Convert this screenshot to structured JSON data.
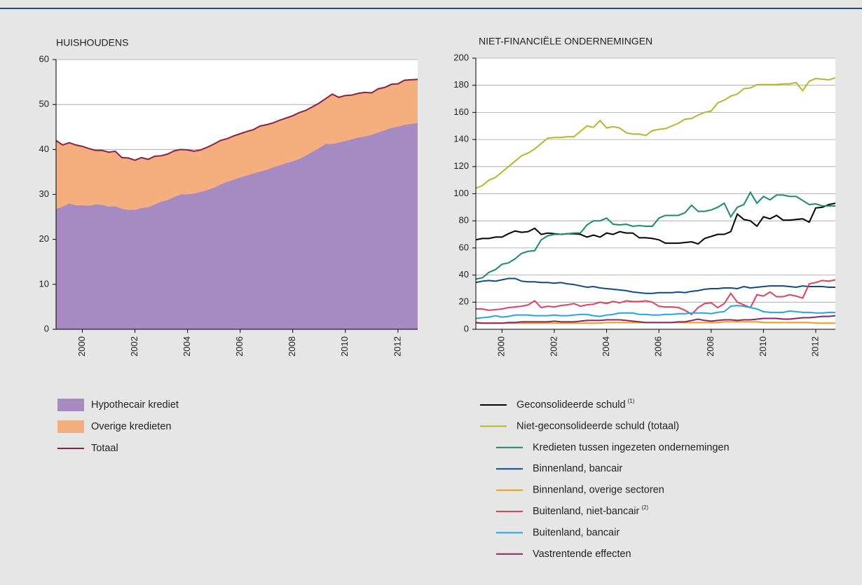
{
  "chart_data": [
    {
      "type": "area",
      "title": "HUISHOUDENS",
      "x": [
        1999,
        1999.25,
        1999.5,
        1999.75,
        2000,
        2000.25,
        2000.5,
        2000.75,
        2001,
        2001.25,
        2001.5,
        2001.75,
        2002,
        2002.25,
        2002.5,
        2002.75,
        2003,
        2003.25,
        2003.5,
        2003.75,
        2004,
        2004.25,
        2004.5,
        2004.75,
        2005,
        2005.25,
        2005.5,
        2005.75,
        2006,
        2006.25,
        2006.5,
        2006.75,
        2007,
        2007.25,
        2007.5,
        2007.75,
        2008,
        2008.25,
        2008.5,
        2008.75,
        2009,
        2009.25,
        2009.5,
        2009.75,
        2010,
        2010.25,
        2010.5,
        2010.75,
        2011,
        2011.25,
        2011.5,
        2011.75,
        2012,
        2012.25,
        2012.5,
        2012.75
      ],
      "xlim": [
        1999,
        2012.75
      ],
      "xticks": [
        2000,
        2002,
        2004,
        2006,
        2008,
        2010,
        2012
      ],
      "ylim": [
        0,
        60
      ],
      "yticks": [
        0,
        10,
        20,
        30,
        40,
        50,
        60
      ],
      "grid": true,
      "series": [
        {
          "name": "Hypothecair krediet",
          "color": "#a68bc2",
          "values": [
            26.8,
            27.3,
            28.0,
            27.6,
            27.6,
            27.5,
            27.8,
            27.7,
            27.3,
            27.4,
            26.8,
            26.6,
            26.6,
            27.0,
            27.2,
            27.8,
            28.4,
            28.8,
            29.5,
            30.0,
            30.0,
            30.2,
            30.6,
            31.0,
            31.5,
            32.2,
            32.8,
            33.3,
            33.8,
            34.2,
            34.7,
            35.1,
            35.5,
            36.0,
            36.5,
            37.0,
            37.4,
            37.9,
            38.7,
            39.5,
            40.3,
            41.3,
            41.2,
            41.6,
            41.9,
            42.3,
            42.7,
            42.9,
            43.3,
            43.8,
            44.3,
            44.8,
            45.1,
            45.5,
            45.7,
            45.9
          ]
        },
        {
          "name": "Overige kredieten",
          "color": "#f5ae7e",
          "values": [
            15.2,
            13.7,
            13.5,
            13.4,
            13.1,
            12.7,
            12.0,
            12.1,
            12.1,
            12.2,
            11.4,
            11.5,
            11.0,
            11.2,
            10.6,
            10.7,
            10.2,
            10.2,
            10.2,
            10.0,
            9.9,
            9.4,
            9.3,
            9.5,
            9.7,
            9.8,
            9.6,
            9.7,
            9.7,
            9.8,
            9.7,
            10.1,
            10.0,
            9.9,
            10.0,
            10.0,
            10.1,
            10.3,
            10.0,
            10.0,
            10.0,
            10.0,
            11.1,
            10.0,
            10.1,
            9.8,
            9.8,
            9.8,
            9.3,
            9.7,
            9.5,
            9.7,
            9.5,
            9.9,
            9.8,
            9.7
          ]
        },
        {
          "name": "Totaal",
          "color": "#8b1f4a",
          "mark": "line",
          "values": [
            42.0,
            41.0,
            41.5,
            41.0,
            40.7,
            40.2,
            39.8,
            39.8,
            39.4,
            39.6,
            38.2,
            38.1,
            37.6,
            38.2,
            37.8,
            38.5,
            38.6,
            39.0,
            39.7,
            40.0,
            39.9,
            39.6,
            39.9,
            40.5,
            41.2,
            42.0,
            42.4,
            43.0,
            43.5,
            44.0,
            44.4,
            45.2,
            45.5,
            45.9,
            46.5,
            47.0,
            47.5,
            48.2,
            48.7,
            49.5,
            50.3,
            51.3,
            52.3,
            51.6,
            52.0,
            52.1,
            52.5,
            52.7,
            52.6,
            53.5,
            53.8,
            54.5,
            54.6,
            55.4,
            55.5,
            55.6
          ]
        }
      ]
    },
    {
      "type": "line",
      "title": "NIET-FINANCIËLE ONDERNEMINGEN",
      "x": [
        1999,
        1999.25,
        1999.5,
        1999.75,
        2000,
        2000.25,
        2000.5,
        2000.75,
        2001,
        2001.25,
        2001.5,
        2001.75,
        2002,
        2002.25,
        2002.5,
        2002.75,
        2003,
        2003.25,
        2003.5,
        2003.75,
        2004,
        2004.25,
        2004.5,
        2004.75,
        2005,
        2005.25,
        2005.5,
        2005.75,
        2006,
        2006.25,
        2006.5,
        2006.75,
        2007,
        2007.25,
        2007.5,
        2007.75,
        2008,
        2008.25,
        2008.5,
        2008.75,
        2009,
        2009.25,
        2009.5,
        2009.75,
        2010,
        2010.25,
        2010.5,
        2010.75,
        2011,
        2011.25,
        2011.5,
        2011.75,
        2012,
        2012.25,
        2012.5,
        2012.75
      ],
      "xlim": [
        1999,
        2012.75
      ],
      "xticks": [
        2000,
        2002,
        2004,
        2006,
        2008,
        2010,
        2012
      ],
      "ylim": [
        0,
        200
      ],
      "yticks": [
        0,
        20,
        40,
        60,
        80,
        100,
        120,
        140,
        160,
        180,
        200
      ],
      "grid": true,
      "series": [
        {
          "name": "Geconsolideerde schuld",
          "superscript": "(1)",
          "color": "#000000",
          "values": [
            66,
            67,
            67,
            68,
            68,
            70.5,
            72.5,
            71.5,
            72,
            74.5,
            70,
            71,
            70.5,
            70,
            70.5,
            70.5,
            70,
            68,
            69.5,
            68,
            71,
            70,
            72,
            71,
            71,
            67.5,
            67.5,
            67,
            66,
            63.5,
            63.5,
            63.5,
            64,
            64.5,
            63,
            67,
            68.5,
            70,
            70,
            72,
            85,
            81,
            80,
            76,
            83,
            81.5,
            84,
            80.5,
            80.5,
            81,
            81.5,
            79,
            89.5,
            90,
            92,
            93
          ]
        },
        {
          "name": "Niet-geconsolideerde schuld (totaal)",
          "color": "#b8b52a",
          "values": [
            104,
            106,
            110,
            112,
            116,
            120,
            124,
            128,
            130,
            133,
            137,
            141,
            141.5,
            141.5,
            142,
            142,
            146,
            150,
            149,
            154,
            148.5,
            149.5,
            148.5,
            145,
            144,
            144,
            143,
            146.5,
            147.5,
            148,
            150,
            152,
            155,
            155.5,
            158,
            160,
            161,
            167,
            169,
            172,
            173.5,
            177.5,
            178,
            180.5,
            180.5,
            180.5,
            180.5,
            181,
            181,
            182,
            176,
            183,
            185,
            184.5,
            184,
            185.5
          ]
        },
        {
          "name": "Kredieten tussen ingezeten ondernemingen",
          "color": "#1b8a6b",
          "values": [
            37,
            38,
            42,
            44,
            48,
            49,
            52,
            56,
            57.5,
            58,
            66,
            69,
            70,
            70,
            70.5,
            71,
            71,
            77,
            80,
            80,
            82,
            77.5,
            77,
            77.5,
            76,
            76.5,
            76,
            76,
            82,
            84,
            84,
            84,
            86,
            91.5,
            87,
            87,
            88,
            90,
            93,
            83,
            90,
            92,
            101,
            93,
            98,
            95.5,
            99,
            99,
            98,
            98,
            95,
            92,
            92.5,
            91,
            91,
            91
          ]
        },
        {
          "name": "Binnenland, bancair",
          "color": "#0d4a8c",
          "values": [
            34.5,
            35.5,
            36,
            35.5,
            36.5,
            37.5,
            37.5,
            35.5,
            35,
            35,
            34.5,
            34.5,
            34,
            34.5,
            33.5,
            33,
            32,
            31,
            31.5,
            30.5,
            30,
            29.5,
            29,
            28.5,
            27.5,
            27,
            26.5,
            26.5,
            27,
            27,
            27,
            27.5,
            27,
            28,
            28.5,
            29.5,
            30,
            30,
            30.5,
            30.5,
            30,
            31.5,
            30.5,
            31,
            31.5,
            32,
            32,
            32,
            31.5,
            31,
            32,
            31.5,
            31.5,
            31.5,
            31,
            31
          ]
        },
        {
          "name": "Binnenland, overige sectoren",
          "color": "#f39c12",
          "values": [
            4.5,
            4.5,
            4.5,
            4.5,
            4.5,
            4.5,
            4.5,
            4.5,
            4.5,
            4.5,
            4.5,
            4.5,
            4.5,
            4.5,
            4.5,
            4.5,
            4.5,
            4.5,
            4.5,
            4.5,
            5,
            5,
            5,
            5,
            5,
            5,
            5,
            5,
            5,
            5,
            5,
            5,
            5,
            5,
            5,
            5,
            5,
            5,
            5.5,
            5.5,
            5.5,
            5.5,
            5.5,
            5.5,
            5,
            5,
            5,
            5,
            5,
            5,
            5,
            5,
            4.5,
            4.5,
            4.5,
            4.5
          ]
        },
        {
          "name": "Buitenland, niet-bancair",
          "superscript": "(2)",
          "color": "#e2405a",
          "values": [
            15,
            15,
            14,
            14.5,
            15,
            16,
            16.5,
            17,
            18,
            21,
            16,
            17,
            16.5,
            17.5,
            18,
            19,
            17,
            18,
            18.5,
            20,
            19,
            20.5,
            19.5,
            21,
            20.5,
            20.5,
            21,
            20,
            17,
            16.5,
            16.5,
            16,
            14,
            11,
            16,
            19,
            19.5,
            16,
            19,
            26.5,
            20,
            18,
            16,
            25.5,
            24.5,
            27.5,
            24,
            24,
            25.5,
            24.5,
            23,
            33.5,
            34.5,
            36,
            35.5,
            36.5
          ]
        },
        {
          "name": "Buitenland, bancair",
          "color": "#1fa6e3",
          "values": [
            8,
            8.5,
            9,
            10,
            9,
            9.5,
            10.5,
            10.5,
            10.5,
            10,
            10,
            10,
            10.5,
            10,
            10,
            10.5,
            11,
            11,
            10,
            9.5,
            10.5,
            11,
            12,
            12,
            12,
            11,
            11,
            10.5,
            10.5,
            11,
            11,
            11.5,
            11.5,
            12,
            12,
            12,
            11.5,
            12.5,
            13,
            17,
            17.5,
            17,
            16,
            15,
            13,
            12.5,
            12.5,
            12.5,
            13.5,
            13,
            12.5,
            12.5,
            12,
            12,
            12.5,
            12.5
          ]
        },
        {
          "name": "Vastrentende effecten",
          "color": "#8b2462",
          "values": [
            5,
            4.5,
            4.5,
            4.5,
            4.5,
            5,
            5,
            5.5,
            5.5,
            5.5,
            5.5,
            5.5,
            6,
            5.5,
            5.5,
            5.5,
            6,
            6.5,
            6.5,
            6.5,
            7,
            7,
            7,
            6.5,
            6,
            5.5,
            5,
            5,
            5,
            5,
            5,
            5.5,
            5.5,
            6.5,
            7.5,
            6.5,
            6,
            6.5,
            7,
            7,
            6.5,
            7,
            7,
            7.5,
            8,
            8,
            8,
            7.5,
            7.5,
            8,
            8.5,
            8.5,
            9,
            9.5,
            9.5,
            10
          ]
        }
      ]
    }
  ]
}
